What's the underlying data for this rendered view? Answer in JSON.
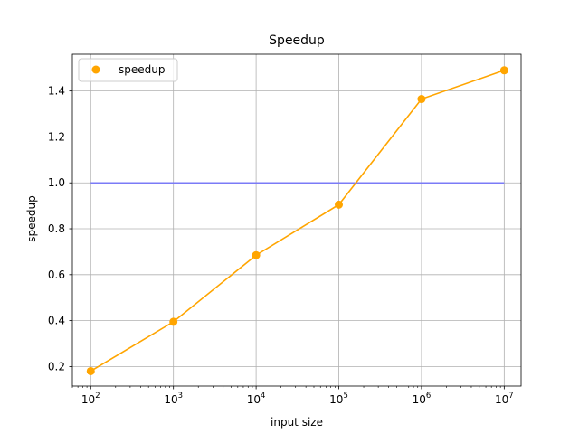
{
  "chart_data": {
    "type": "line",
    "title": "Speedup",
    "xlabel": "input size",
    "ylabel": "speedup",
    "xscale": "log",
    "xlim": [
      60,
      16000000
    ],
    "ylim": [
      0.115,
      1.56
    ],
    "x_ticks": [
      {
        "value": 100,
        "base": "10",
        "exp": "2"
      },
      {
        "value": 1000,
        "base": "10",
        "exp": "3"
      },
      {
        "value": 10000,
        "base": "10",
        "exp": "4"
      },
      {
        "value": 100000,
        "base": "10",
        "exp": "5"
      },
      {
        "value": 1000000,
        "base": "10",
        "exp": "6"
      },
      {
        "value": 10000000,
        "base": "10",
        "exp": "7"
      }
    ],
    "y_ticks": [
      "0.2",
      "0.4",
      "0.6",
      "0.8",
      "1.0",
      "1.2",
      "1.4"
    ],
    "grid": true,
    "legend_position": "top-left",
    "series": [
      {
        "name": "speedup",
        "color": "#ffa500",
        "marker": "circle",
        "x": [
          100,
          1000,
          10000,
          100000,
          1000000,
          10000000
        ],
        "y": [
          0.18,
          0.395,
          0.685,
          0.905,
          1.365,
          1.49
        ]
      }
    ],
    "reference_lines": [
      {
        "y": 1.0,
        "x_from": 100,
        "x_to": 10000000,
        "color": "#7b7bf7"
      }
    ]
  }
}
